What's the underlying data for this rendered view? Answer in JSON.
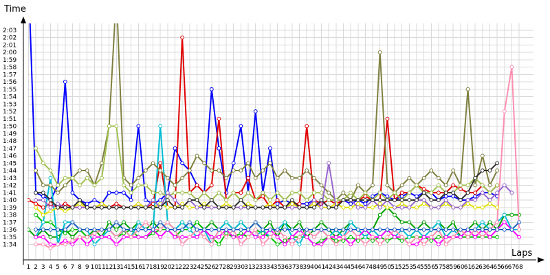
{
  "chart_data": {
    "type": "line",
    "ylabel": "Time",
    "xlabel": "Laps",
    "grid": true,
    "legend": "none",
    "xlim": [
      1,
      68
    ],
    "ylim": [
      93,
      124
    ],
    "x_ticks": [
      1,
      2,
      3,
      4,
      5,
      6,
      7,
      8,
      9,
      10,
      11,
      12,
      13,
      14,
      15,
      16,
      17,
      18,
      19,
      20,
      21,
      22,
      23,
      24,
      25,
      26,
      27,
      28,
      29,
      30,
      31,
      32,
      33,
      34,
      35,
      36,
      37,
      38,
      39,
      40,
      41,
      42,
      43,
      44,
      45,
      46,
      47,
      48,
      49,
      50,
      51,
      52,
      53,
      54,
      55,
      56,
      57,
      58,
      59,
      60,
      61,
      62,
      63,
      64,
      65,
      66,
      67,
      68
    ],
    "y_ticks": [
      {
        "value": 94,
        "label": "1:34"
      },
      {
        "value": 95,
        "label": "1:35"
      },
      {
        "value": 96,
        "label": "1:36"
      },
      {
        "value": 97,
        "label": "1:37"
      },
      {
        "value": 98,
        "label": "1:38"
      },
      {
        "value": 99,
        "label": "1:39"
      },
      {
        "value": 100,
        "label": "1:40"
      },
      {
        "value": 101,
        "label": "1:41"
      },
      {
        "value": 102,
        "label": "1:42"
      },
      {
        "value": 103,
        "label": "1:43"
      },
      {
        "value": 104,
        "label": "1:44"
      },
      {
        "value": 105,
        "label": "1:45"
      },
      {
        "value": 106,
        "label": "1:46"
      },
      {
        "value": 107,
        "label": "1:47"
      },
      {
        "value": 108,
        "label": "1:48"
      },
      {
        "value": 109,
        "label": "1:49"
      },
      {
        "value": 110,
        "label": "1:50"
      },
      {
        "value": 111,
        "label": "1:51"
      },
      {
        "value": 112,
        "label": "1:52"
      },
      {
        "value": 113,
        "label": "1:53"
      },
      {
        "value": 114,
        "label": "1:54"
      },
      {
        "value": 115,
        "label": "1:55"
      },
      {
        "value": 116,
        "label": "1:56"
      },
      {
        "value": 117,
        "label": "1:57"
      },
      {
        "value": 118,
        "label": "1:58"
      },
      {
        "value": 119,
        "label": "1:59"
      },
      {
        "value": 120,
        "label": "2:00"
      },
      {
        "value": 121,
        "label": "2:01"
      },
      {
        "value": 122,
        "label": "2:02"
      },
      {
        "value": 123,
        "label": "2:03"
      }
    ],
    "series": [
      {
        "color": "#0000ff",
        "values": [
          130,
          101,
          100.5,
          100,
          102,
          116,
          101,
          100,
          99.5,
          100,
          99.5,
          101,
          101,
          101,
          100,
          110,
          100,
          99.5,
          100,
          101,
          107,
          105,
          104,
          102,
          101,
          115,
          107,
          101,
          105,
          110,
          101,
          112,
          101,
          107,
          99.5,
          100,
          99.5,
          99.5,
          99.5,
          100,
          99.5,
          100,
          99.5,
          100,
          99.5,
          100,
          99.5,
          100.5,
          101,
          100.5,
          100,
          100.5,
          101,
          100.5,
          101,
          101,
          100,
          100.5,
          100.5,
          100,
          100,
          100.5,
          101,
          101,
          100.5,
          null,
          null,
          null
        ]
      },
      {
        "color": "#e00000",
        "values": [
          100,
          99.5,
          99,
          99.5,
          99,
          99.5,
          99,
          99,
          99,
          99,
          99.5,
          99,
          99.5,
          99,
          99,
          99.5,
          99,
          99.5,
          105,
          99,
          99,
          122,
          101,
          102,
          101,
          102,
          111,
          100,
          101,
          101,
          103,
          100,
          100.5,
          99,
          100,
          99,
          99.5,
          99.5,
          110,
          100,
          99.5,
          100,
          99.5,
          100,
          100,
          100,
          100.5,
          100,
          100,
          111,
          100,
          101,
          101,
          102,
          101.5,
          101,
          101,
          101,
          102,
          101.5,
          101,
          101,
          102,
          101,
          102,
          null,
          null,
          null
        ]
      },
      {
        "color": "#00a000",
        "values": [
          96,
          95,
          96,
          95,
          95,
          96,
          95,
          96,
          95,
          96,
          95,
          97,
          96,
          97,
          96,
          97,
          96,
          97,
          96,
          97,
          96,
          97,
          96,
          97,
          96,
          97,
          96,
          97,
          96,
          97,
          96,
          97,
          96,
          97,
          95,
          97,
          96,
          97,
          95,
          96,
          97,
          96,
          95,
          96,
          97,
          96,
          95,
          96,
          98,
          99,
          98,
          97,
          97,
          96,
          97,
          96,
          97,
          96,
          97,
          95,
          96,
          97,
          96,
          97,
          96,
          98,
          98,
          98
        ]
      },
      {
        "color": "#00c000",
        "values": [
          null,
          98,
          97,
          97,
          96,
          95.5,
          96,
          96,
          95,
          95.5,
          96,
          96,
          95,
          95.5,
          96,
          95,
          95,
          95.5,
          96,
          96,
          95,
          96,
          96,
          97,
          96,
          95,
          94,
          95.5,
          95,
          95.5,
          95,
          96,
          95.5,
          95,
          94,
          94.5,
          95,
          95,
          95,
          94,
          94.5,
          95,
          94.5,
          94.5,
          95,
          94.5,
          95,
          94.5,
          95,
          94.5,
          95,
          94.5,
          95,
          95,
          95,
          94.5,
          95,
          95,
          95,
          95,
          95,
          95,
          95,
          95,
          95,
          null,
          null,
          null
        ]
      },
      {
        "color": "#00bcd4",
        "values": [
          null,
          95,
          97,
          103,
          94,
          97,
          97,
          96,
          96,
          94,
          95,
          96,
          95,
          96,
          95,
          97,
          96,
          96,
          110,
          97,
          96,
          97,
          96,
          95,
          96,
          94,
          96,
          97,
          96,
          97,
          96,
          95,
          96,
          95,
          96,
          97,
          95,
          94,
          96,
          95,
          96,
          95,
          96,
          95,
          97,
          96,
          95,
          96,
          95,
          96,
          95,
          96,
          95,
          96,
          95,
          96,
          97,
          95,
          96,
          95,
          96,
          96,
          97,
          96,
          97,
          98,
          96,
          96
        ]
      },
      {
        "color": "#ff00ff",
        "values": [
          null,
          95,
          95,
          94,
          94,
          94.5,
          94,
          95,
          94,
          95,
          95,
          95,
          94,
          95,
          95,
          95,
          95,
          96,
          95,
          96,
          95,
          95,
          95,
          95,
          96,
          95,
          95,
          96,
          95,
          95,
          96,
          95,
          95,
          96,
          95,
          94,
          95,
          96,
          95,
          94,
          94,
          95,
          95,
          95,
          94,
          95,
          96,
          95,
          95,
          96,
          95,
          95,
          94,
          94,
          95,
          95,
          94,
          95,
          95,
          95,
          96,
          95,
          96,
          95,
          96,
          97,
          96,
          95
        ]
      },
      {
        "color": "#ff8fb0",
        "values": [
          null,
          94,
          94,
          93.5,
          94,
          94,
          94.5,
          95,
          95,
          95.5,
          96,
          96,
          95,
          96,
          95,
          96,
          97,
          96,
          96,
          97,
          96,
          94,
          95,
          96,
          95,
          94,
          96,
          95,
          96,
          94,
          95,
          96,
          94,
          95,
          96,
          95,
          94,
          95,
          96,
          95,
          96,
          95,
          94,
          95,
          96,
          95,
          94,
          95,
          94,
          95,
          96,
          95,
          94,
          95,
          94,
          95,
          96,
          94,
          95,
          96,
          95,
          96,
          95,
          96,
          97,
          112,
          118,
          96
        ]
      },
      {
        "color": "#808040",
        "values": [
          null,
          104,
          102,
          102,
          101,
          102,
          103,
          104,
          104,
          102,
          105,
          110,
          128,
          103,
          102,
          103,
          104,
          105,
          104,
          103,
          102,
          103,
          104,
          106,
          105,
          104,
          104,
          103,
          104,
          104,
          105,
          103,
          104,
          105,
          103,
          104,
          103,
          103,
          104,
          103,
          102,
          101,
          100,
          101,
          100,
          102,
          101,
          102,
          120,
          102,
          101,
          102,
          103,
          102,
          103,
          104,
          103,
          102,
          104,
          102,
          115,
          102,
          106,
          102,
          104,
          null,
          null,
          null
        ]
      },
      {
        "color": "#a0c050",
        "values": [
          null,
          107,
          105,
          104,
          102,
          103,
          103,
          102,
          103,
          102,
          103,
          110,
          110,
          102,
          101,
          102,
          102,
          101,
          101,
          100.5,
          101,
          101,
          101,
          100,
          101,
          100,
          101,
          100,
          101,
          100,
          101,
          100,
          101,
          100,
          101,
          100,
          101,
          101,
          100,
          101,
          101,
          100,
          100,
          100,
          101,
          100,
          101,
          100,
          101,
          100,
          101,
          100,
          101,
          102,
          101,
          101,
          102,
          101,
          101,
          102,
          102,
          103,
          102,
          101,
          102,
          null,
          null,
          null
        ]
      },
      {
        "color": "#e0e000",
        "values": [
          null,
          99,
          98,
          98.5,
          99,
          98.5,
          99,
          99.5,
          99,
          99,
          99.5,
          99,
          99,
          99,
          99,
          99.5,
          99,
          99,
          99.5,
          99,
          99,
          99.5,
          99,
          99,
          99.5,
          99,
          99,
          99.5,
          99,
          99,
          99.5,
          99,
          99,
          99.5,
          99,
          99,
          99.5,
          99,
          99,
          99.5,
          99,
          99,
          99.5,
          99,
          99,
          99.5,
          99,
          99,
          99.5,
          99,
          99,
          99.5,
          99,
          99,
          99.5,
          99,
          99,
          99.5,
          99,
          99,
          99.5,
          99,
          99,
          99.5,
          99,
          null,
          null,
          null
        ]
      },
      {
        "color": "#9966cc",
        "values": [
          null,
          100,
          100,
          99,
          99.5,
          99,
          99,
          99,
          99,
          99,
          99,
          99,
          99,
          99,
          99,
          99,
          99,
          100,
          99,
          101,
          100,
          99,
          100,
          99,
          99,
          99,
          99,
          99,
          99,
          99,
          99,
          99,
          99,
          99,
          99,
          99,
          99,
          99,
          99,
          100,
          99,
          105,
          99,
          100,
          100,
          99,
          99,
          100,
          99,
          100,
          99,
          99,
          99,
          100,
          100,
          99,
          99,
          100,
          99,
          99,
          100,
          100,
          101,
          100,
          101,
          102,
          101,
          null
        ]
      },
      {
        "color": "#303030",
        "values": [
          null,
          101,
          101,
          100,
          99,
          99,
          99,
          100,
          99,
          99,
          99,
          99,
          99,
          99,
          99,
          99,
          99,
          99,
          99,
          100,
          99,
          99,
          100,
          100,
          99,
          100,
          99,
          99,
          99,
          100,
          99,
          99,
          99,
          99,
          99,
          99,
          100,
          99,
          99,
          99,
          100,
          99,
          99,
          100,
          100,
          100,
          100,
          100,
          100,
          100,
          100,
          100,
          100,
          100,
          101,
          100,
          100,
          101,
          101,
          100,
          101,
          103,
          104,
          104,
          105,
          null,
          null,
          null
        ]
      },
      {
        "color": "#2060c0",
        "values": [
          null,
          96,
          96,
          96,
          96,
          96,
          97,
          96,
          96,
          96,
          96,
          96,
          97,
          96,
          96,
          96,
          96,
          96,
          97,
          96,
          96,
          96,
          97,
          96,
          96,
          96,
          96,
          96,
          96,
          96,
          96,
          97,
          96,
          96,
          96,
          96,
          96,
          96,
          96,
          96,
          96,
          96,
          96,
          96,
          96,
          96,
          96,
          96,
          96,
          96,
          96,
          96,
          96,
          96,
          96,
          96,
          96,
          96,
          96,
          96,
          96,
          96,
          96,
          96,
          96,
          96,
          96,
          97
        ]
      }
    ]
  }
}
